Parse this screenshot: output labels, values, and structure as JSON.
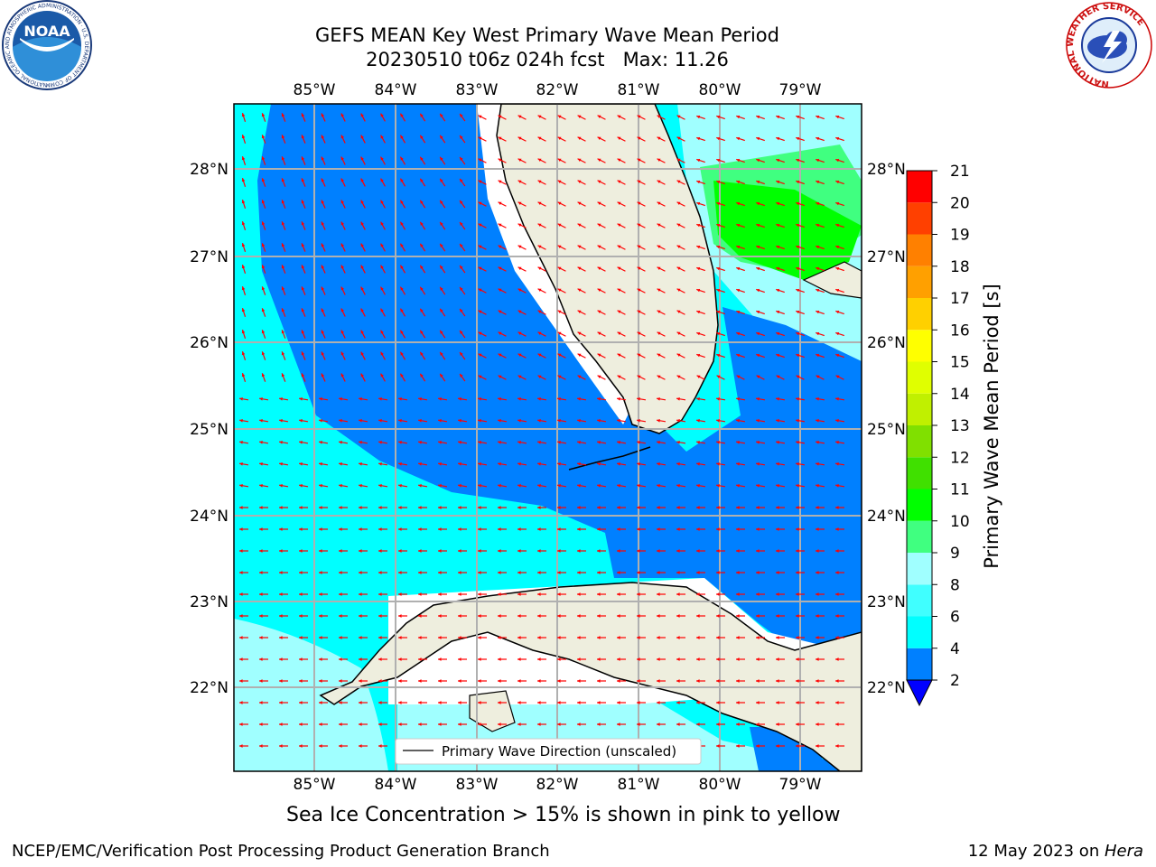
{
  "title": {
    "line1": "GEFS MEAN Key West Primary Wave Mean Period",
    "line2": "20230510 t06z 024h fcst   Max: 11.26"
  },
  "logos": {
    "noaa_text": "NOAA",
    "noaa_ring_text": "NATIONAL OCEANIC AND ATMOSPHERIC ADMINISTRATION · U.S. DEPARTMENT OF COMMERCE",
    "nws_ring_text": "NATIONAL WEATHER SERVICE"
  },
  "map": {
    "lon_labels": [
      "85°W",
      "84°W",
      "83°W",
      "82°W",
      "81°W",
      "80°W",
      "79°W"
    ],
    "lat_labels": [
      "28°N",
      "27°N",
      "26°N",
      "25°N",
      "24°N",
      "23°N",
      "22°N"
    ],
    "legend_label": "Primary Wave Direction (unscaled)",
    "colors": {
      "land": "#eeeede",
      "grid": "#b0b0b0",
      "arrow": "#ff0000",
      "coast": "#000000"
    }
  },
  "colorbar": {
    "label": "Primary Wave Mean Period [s]",
    "ticks": [
      "2",
      "4",
      "6",
      "8",
      "9",
      "10",
      "11",
      "12",
      "13",
      "14",
      "15",
      "16",
      "17",
      "18",
      "19",
      "20",
      "21"
    ],
    "colors": [
      "#0000ff",
      "#0080ff",
      "#00ffff",
      "#40ffff",
      "#a0ffff",
      "#40ff80",
      "#00ff00",
      "#40e000",
      "#80e000",
      "#c0f000",
      "#e0ff00",
      "#ffff00",
      "#ffd000",
      "#ffa000",
      "#ff8000",
      "#ff4000",
      "#ff0000"
    ]
  },
  "caption": "Sea Ice Concentration > 15% is shown in pink to yellow",
  "footer": {
    "left": "NCEP/EMC/Verification Post Processing Product Generation Branch",
    "right_date": "12 May 2023 on ",
    "right_machine": "Hera"
  }
}
